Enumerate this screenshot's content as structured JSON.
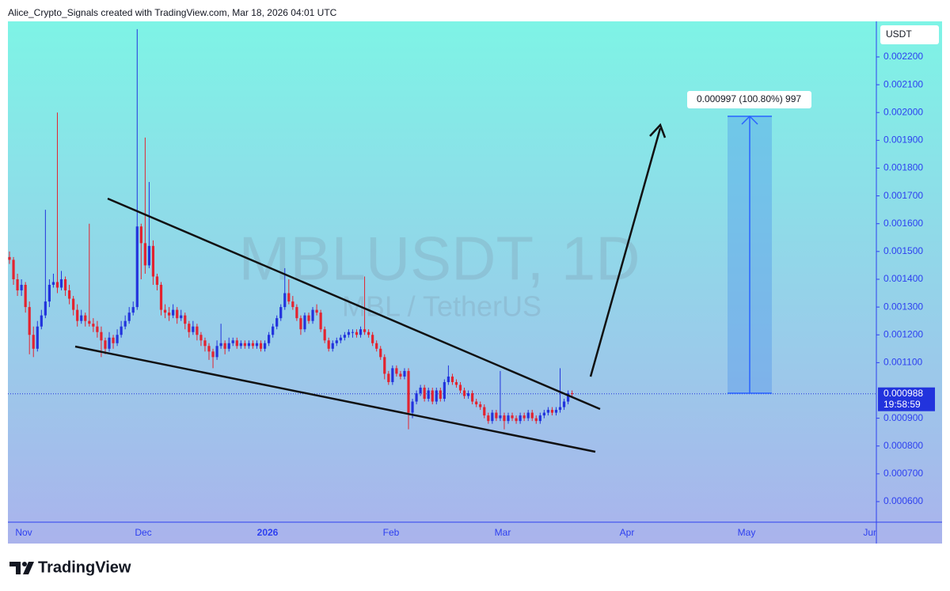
{
  "header": {
    "text": "Alice_Crypto_Signals created with TradingView.com, Mar 18, 2026 04:01 UTC"
  },
  "chart_data": {
    "type": "candlestick",
    "symbol": "MBLUSDT, 1D",
    "description": "MBL / TetherUS",
    "currency": "USDT",
    "up_color": "#2233dd",
    "down_color": "#e3232f",
    "ohlc": [
      [
        0.00148,
        0.0015,
        0.001455,
        0.00147
      ],
      [
        0.00147,
        0.00148,
        0.00138,
        0.0014
      ],
      [
        0.0014,
        0.00142,
        0.00134,
        0.00136
      ],
      [
        0.00136,
        0.0014,
        0.00134,
        0.00138
      ],
      [
        0.00138,
        0.00139,
        0.00128,
        0.0013
      ],
      [
        0.0013,
        0.00132,
        0.00113,
        0.0012
      ],
      [
        0.0012,
        0.00123,
        0.00112,
        0.00115
      ],
      [
        0.00115,
        0.00125,
        0.00114,
        0.00123
      ],
      [
        0.00123,
        0.00129,
        0.00122,
        0.00127
      ],
      [
        0.00127,
        0.00165,
        0.00126,
        0.00132
      ],
      [
        0.00132,
        0.0014,
        0.0013,
        0.00138
      ],
      [
        0.00138,
        0.00142,
        0.00137,
        0.00139
      ],
      [
        0.00139,
        0.002,
        0.00135,
        0.00137
      ],
      [
        0.00137,
        0.00143,
        0.00136,
        0.0014
      ],
      [
        0.0014,
        0.00141,
        0.00134,
        0.00136
      ],
      [
        0.00136,
        0.00138,
        0.00131,
        0.00133
      ],
      [
        0.00133,
        0.00134,
        0.00127,
        0.00129
      ],
      [
        0.00129,
        0.00131,
        0.00123,
        0.00125
      ],
      [
        0.00125,
        0.00129,
        0.00124,
        0.00127
      ],
      [
        0.00127,
        0.00128,
        0.00123,
        0.00125
      ],
      [
        0.00125,
        0.0016,
        0.00123,
        0.00124
      ],
      [
        0.00124,
        0.00126,
        0.00121,
        0.00123
      ],
      [
        0.00123,
        0.00125,
        0.00119,
        0.00121
      ],
      [
        0.00121,
        0.00123,
        0.00112,
        0.00118
      ],
      [
        0.00118,
        0.00119,
        0.00113,
        0.00115
      ],
      [
        0.00115,
        0.00121,
        0.00114,
        0.00119
      ],
      [
        0.00119,
        0.0012,
        0.00115,
        0.00117
      ],
      [
        0.00117,
        0.00122,
        0.00116,
        0.0012
      ],
      [
        0.0012,
        0.00125,
        0.00119,
        0.00123
      ],
      [
        0.00123,
        0.00127,
        0.00122,
        0.00125
      ],
      [
        0.00125,
        0.0013,
        0.00124,
        0.00128
      ],
      [
        0.00128,
        0.00132,
        0.00127,
        0.0013
      ],
      [
        0.0013,
        0.0023,
        0.00129,
        0.00159
      ],
      [
        0.00159,
        0.0016,
        0.0014,
        0.00153
      ],
      [
        0.00153,
        0.00191,
        0.00142,
        0.00145
      ],
      [
        0.00145,
        0.00175,
        0.00144,
        0.00152
      ],
      [
        0.00152,
        0.00154,
        0.00138,
        0.00141
      ],
      [
        0.00141,
        0.00142,
        0.00136,
        0.00138
      ],
      [
        0.00138,
        0.00139,
        0.00127,
        0.00129
      ],
      [
        0.00129,
        0.00131,
        0.00126,
        0.00128
      ],
      [
        0.00128,
        0.0013,
        0.00125,
        0.00127
      ],
      [
        0.00127,
        0.00131,
        0.00126,
        0.00129
      ],
      [
        0.00129,
        0.0013,
        0.00124,
        0.00126
      ],
      [
        0.00126,
        0.00129,
        0.00125,
        0.00127
      ],
      [
        0.00127,
        0.00128,
        0.00122,
        0.00124
      ],
      [
        0.00124,
        0.00125,
        0.00119,
        0.00121
      ],
      [
        0.00121,
        0.00125,
        0.0012,
        0.00123
      ],
      [
        0.00123,
        0.00124,
        0.00118,
        0.0012
      ],
      [
        0.0012,
        0.00121,
        0.00116,
        0.00118
      ],
      [
        0.00118,
        0.00119,
        0.00114,
        0.00116
      ],
      [
        0.00116,
        0.00117,
        0.00111,
        0.00114
      ],
      [
        0.00114,
        0.00115,
        0.00108,
        0.00112
      ],
      [
        0.00112,
        0.00118,
        0.00111,
        0.00116
      ],
      [
        0.00116,
        0.00124,
        0.00115,
        0.00117
      ],
      [
        0.00117,
        0.00118,
        0.00113,
        0.00115
      ],
      [
        0.00115,
        0.00119,
        0.00114,
        0.00117
      ],
      [
        0.00117,
        0.00119,
        0.00116,
        0.00118
      ],
      [
        0.00118,
        0.00119,
        0.00115,
        0.00116
      ],
      [
        0.00116,
        0.00118,
        0.00115,
        0.00117
      ],
      [
        0.00117,
        0.00118,
        0.00115,
        0.00116
      ],
      [
        0.00116,
        0.00118,
        0.00115,
        0.00117
      ],
      [
        0.00117,
        0.00118,
        0.00115,
        0.00116
      ],
      [
        0.00116,
        0.00118,
        0.00115,
        0.00117
      ],
      [
        0.00117,
        0.00118,
        0.00114,
        0.00115
      ],
      [
        0.00115,
        0.00118,
        0.00114,
        0.00117
      ],
      [
        0.00117,
        0.00121,
        0.00116,
        0.0012
      ],
      [
        0.0012,
        0.00124,
        0.00119,
        0.00123
      ],
      [
        0.00123,
        0.00127,
        0.00122,
        0.00126
      ],
      [
        0.00126,
        0.00131,
        0.00125,
        0.0013
      ],
      [
        0.0013,
        0.00144,
        0.00129,
        0.00135
      ],
      [
        0.00135,
        0.0014,
        0.00131,
        0.00132
      ],
      [
        0.00132,
        0.00134,
        0.00129,
        0.0013
      ],
      [
        0.0013,
        0.00131,
        0.00125,
        0.00126
      ],
      [
        0.00126,
        0.00127,
        0.0012,
        0.00122
      ],
      [
        0.00122,
        0.00128,
        0.00121,
        0.00127
      ],
      [
        0.00127,
        0.00128,
        0.00124,
        0.00125
      ],
      [
        0.00125,
        0.0013,
        0.00124,
        0.00129
      ],
      [
        0.00129,
        0.00131,
        0.00127,
        0.00128
      ],
      [
        0.00128,
        0.00129,
        0.00121,
        0.00122
      ],
      [
        0.00122,
        0.00123,
        0.00117,
        0.00118
      ],
      [
        0.00118,
        0.00119,
        0.00114,
        0.00115
      ],
      [
        0.00115,
        0.00118,
        0.00114,
        0.00117
      ],
      [
        0.00117,
        0.00119,
        0.00116,
        0.00118
      ],
      [
        0.00118,
        0.0012,
        0.00117,
        0.00119
      ],
      [
        0.00119,
        0.00121,
        0.00118,
        0.0012
      ],
      [
        0.0012,
        0.00122,
        0.00119,
        0.00121
      ],
      [
        0.00121,
        0.00122,
        0.00119,
        0.00121
      ],
      [
        0.00121,
        0.00122,
        0.00119,
        0.0012
      ],
      [
        0.0012,
        0.00123,
        0.00119,
        0.00122
      ],
      [
        0.00122,
        0.00141,
        0.0012,
        0.00121
      ],
      [
        0.00121,
        0.00122,
        0.00119,
        0.0012
      ],
      [
        0.0012,
        0.00121,
        0.00116,
        0.00117
      ],
      [
        0.00117,
        0.00118,
        0.00114,
        0.00115
      ],
      [
        0.00115,
        0.00116,
        0.00111,
        0.00112
      ],
      [
        0.00112,
        0.00113,
        0.00104,
        0.00106
      ],
      [
        0.00106,
        0.00107,
        0.00102,
        0.00103
      ],
      [
        0.00103,
        0.00109,
        0.00102,
        0.00108
      ],
      [
        0.00108,
        0.00109,
        0.00105,
        0.00106
      ],
      [
        0.00106,
        0.00107,
        0.00104,
        0.00105
      ],
      [
        0.00105,
        0.00108,
        0.00104,
        0.00107
      ],
      [
        0.00107,
        0.00108,
        0.00086,
        0.00092
      ],
      [
        0.00092,
        0.00097,
        0.0009,
        0.00096
      ],
      [
        0.00096,
        0.001,
        0.00095,
        0.00099
      ],
      [
        0.00099,
        0.00102,
        0.00098,
        0.00101
      ],
      [
        0.00101,
        0.00102,
        0.00096,
        0.00097
      ],
      [
        0.00097,
        0.00101,
        0.00096,
        0.001
      ],
      [
        0.001,
        0.00101,
        0.00095,
        0.00096
      ],
      [
        0.00096,
        0.00101,
        0.00095,
        0.001
      ],
      [
        0.001,
        0.00101,
        0.00096,
        0.00097
      ],
      [
        0.00097,
        0.00104,
        0.00096,
        0.00103
      ],
      [
        0.00103,
        0.00109,
        0.00102,
        0.00105
      ],
      [
        0.00105,
        0.00106,
        0.00102,
        0.00103
      ],
      [
        0.00103,
        0.00104,
        0.00101,
        0.00102
      ],
      [
        0.00102,
        0.00103,
        0.00099,
        0.001
      ],
      [
        0.001,
        0.00101,
        0.00097,
        0.00098
      ],
      [
        0.00098,
        0.001,
        0.00097,
        0.00099
      ],
      [
        0.00099,
        0.001,
        0.00095,
        0.00096
      ],
      [
        0.00096,
        0.00097,
        0.00094,
        0.00095
      ],
      [
        0.00095,
        0.00096,
        0.00093,
        0.00094
      ],
      [
        0.00094,
        0.00095,
        0.0009,
        0.00091
      ],
      [
        0.00091,
        0.00092,
        0.00088,
        0.00089
      ],
      [
        0.00089,
        0.00093,
        0.00088,
        0.00092
      ],
      [
        0.00092,
        0.00093,
        0.00089,
        0.0009
      ],
      [
        0.0009,
        0.00107,
        0.00089,
        0.00091
      ],
      [
        0.00091,
        0.00092,
        0.00086,
        0.00089
      ],
      [
        0.00089,
        0.00092,
        0.00088,
        0.00091
      ],
      [
        0.00091,
        0.00092,
        0.00089,
        0.0009
      ],
      [
        0.0009,
        0.00091,
        0.00088,
        0.00089
      ],
      [
        0.00089,
        0.00092,
        0.00088,
        0.00091
      ],
      [
        0.00091,
        0.00092,
        0.00089,
        0.0009
      ],
      [
        0.0009,
        0.00093,
        0.00089,
        0.00092
      ],
      [
        0.00092,
        0.00093,
        0.00089,
        0.0009
      ],
      [
        0.0009,
        0.00091,
        0.00088,
        0.00089
      ],
      [
        0.00089,
        0.00092,
        0.00088,
        0.00091
      ],
      [
        0.00091,
        0.00093,
        0.0009,
        0.00092
      ],
      [
        0.00092,
        0.00094,
        0.00091,
        0.00093
      ],
      [
        0.00093,
        0.00094,
        0.00091,
        0.00092
      ],
      [
        0.00092,
        0.00094,
        0.00091,
        0.00093
      ],
      [
        0.00093,
        0.00108,
        0.00092,
        0.00094
      ],
      [
        0.00094,
        0.00097,
        0.00093,
        0.00096
      ],
      [
        0.00096,
        0.001,
        0.00095,
        0.00099
      ],
      [
        0.00099,
        0.001,
        0.00098,
        0.000988
      ]
    ],
    "ylim": [
      0.000526,
      0.002328
    ],
    "yticks": [
      {
        "value": 0.0006,
        "label": "0.000600"
      },
      {
        "value": 0.0007,
        "label": "0.000700"
      },
      {
        "value": 0.0008,
        "label": "0.000800"
      },
      {
        "value": 0.0009,
        "label": "0.000900"
      },
      {
        "value": 0.0011,
        "label": "0.001100"
      },
      {
        "value": 0.0012,
        "label": "0.001200"
      },
      {
        "value": 0.0013,
        "label": "0.001300"
      },
      {
        "value": 0.0014,
        "label": "0.001400"
      },
      {
        "value": 0.0015,
        "label": "0.001500"
      },
      {
        "value": 0.0016,
        "label": "0.001600"
      },
      {
        "value": 0.0017,
        "label": "0.001700"
      },
      {
        "value": 0.0018,
        "label": "0.001800"
      },
      {
        "value": 0.0019,
        "label": "0.001900"
      },
      {
        "value": 0.002,
        "label": "0.002000"
      },
      {
        "value": 0.0021,
        "label": "0.002100"
      },
      {
        "value": 0.0022,
        "label": "0.002200"
      }
    ],
    "xticks": [
      "Nov",
      "Dec",
      "2026",
      "Feb",
      "Mar",
      "Apr",
      "May",
      "Jun"
    ],
    "last_price": 0.000988,
    "countdown": "19:58:59",
    "projection_label": "0.000997 (100.80%) 997"
  },
  "footer": {
    "brand": "TradingView"
  }
}
